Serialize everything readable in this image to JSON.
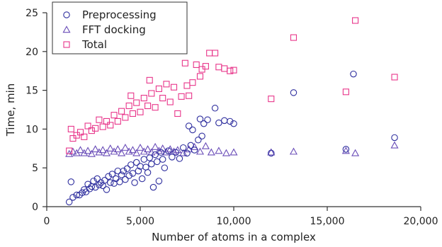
{
  "chart_data": {
    "type": "scatter",
    "title": "",
    "xlabel": "Number of atoms in a complex",
    "ylabel": "Time, min",
    "xlim": [
      0,
      20000
    ],
    "ylim": [
      0,
      25
    ],
    "x_ticks": [
      0,
      5000,
      10000,
      15000,
      20000
    ],
    "x_tick_labels": [
      "0",
      "5,000",
      "10,000",
      "15,000",
      "20,000"
    ],
    "y_ticks": [
      0,
      5,
      10,
      15,
      20,
      25
    ],
    "y_tick_labels": [
      "0",
      "5",
      "10",
      "15",
      "20",
      "25"
    ],
    "grid": false,
    "legend_position": "top-left",
    "series": [
      {
        "name": "Preprocessing",
        "marker": "circle",
        "color": "#2e2e9e",
        "points": [
          [
            1200,
            0.6
          ],
          [
            1300,
            3.2
          ],
          [
            1400,
            1.2
          ],
          [
            1600,
            1.5
          ],
          [
            1750,
            1.5
          ],
          [
            1900,
            1.8
          ],
          [
            2000,
            2.2
          ],
          [
            2100,
            1.9
          ],
          [
            2200,
            2.9
          ],
          [
            2300,
            2.3
          ],
          [
            2400,
            2.6
          ],
          [
            2500,
            3.3
          ],
          [
            2600,
            2.5
          ],
          [
            2700,
            3.6
          ],
          [
            2800,
            2.8
          ],
          [
            2900,
            3.1
          ],
          [
            3000,
            2.7
          ],
          [
            3100,
            3.4
          ],
          [
            3200,
            2.2
          ],
          [
            3300,
            3.9
          ],
          [
            3400,
            3.1
          ],
          [
            3500,
            4.2
          ],
          [
            3600,
            3.0
          ],
          [
            3700,
            3.6
          ],
          [
            3800,
            4.6
          ],
          [
            3900,
            3.2
          ],
          [
            4000,
            4.1
          ],
          [
            4100,
            4.6
          ],
          [
            4200,
            3.5
          ],
          [
            4300,
            4.9
          ],
          [
            4400,
            4.0
          ],
          [
            4500,
            5.4
          ],
          [
            4600,
            4.3
          ],
          [
            4700,
            3.1
          ],
          [
            4800,
            5.7
          ],
          [
            4900,
            4.6
          ],
          [
            5000,
            5.2
          ],
          [
            5100,
            3.6
          ],
          [
            5200,
            6.1
          ],
          [
            5300,
            5.1
          ],
          [
            5400,
            4.4
          ],
          [
            5500,
            6.3
          ],
          [
            5600,
            5.5
          ],
          [
            5700,
            2.5
          ],
          [
            5800,
            6.7
          ],
          [
            5900,
            5.8
          ],
          [
            6000,
            3.3
          ],
          [
            6100,
            7.0
          ],
          [
            6200,
            6.1
          ],
          [
            6300,
            5.0
          ],
          [
            6500,
            7.2
          ],
          [
            6700,
            6.4
          ],
          [
            6900,
            7.0
          ],
          [
            7100,
            6.2
          ],
          [
            7300,
            7.6
          ],
          [
            7500,
            6.9
          ],
          [
            7600,
            10.4
          ],
          [
            7700,
            7.9
          ],
          [
            7800,
            9.9
          ],
          [
            7900,
            7.3
          ],
          [
            8100,
            8.6
          ],
          [
            8200,
            11.3
          ],
          [
            8300,
            9.1
          ],
          [
            8400,
            10.7
          ],
          [
            8600,
            11.2
          ],
          [
            9000,
            12.7
          ],
          [
            9200,
            10.8
          ],
          [
            9500,
            11.1
          ],
          [
            9800,
            11.0
          ],
          [
            10000,
            10.7
          ],
          [
            12000,
            6.9
          ],
          [
            13200,
            14.7
          ],
          [
            16000,
            7.4
          ],
          [
            16400,
            17.1
          ],
          [
            18600,
            8.9
          ]
        ]
      },
      {
        "name": "FFT docking",
        "marker": "triangle",
        "color": "#6a4db8",
        "points": [
          [
            1200,
            6.8
          ],
          [
            1400,
            7.1
          ],
          [
            1600,
            6.9
          ],
          [
            1800,
            7.3
          ],
          [
            2000,
            6.9
          ],
          [
            2200,
            7.2
          ],
          [
            2400,
            6.8
          ],
          [
            2600,
            7.4
          ],
          [
            2800,
            7.0
          ],
          [
            3000,
            7.3
          ],
          [
            3200,
            6.9
          ],
          [
            3400,
            7.5
          ],
          [
            3600,
            7.1
          ],
          [
            3800,
            7.4
          ],
          [
            4000,
            6.9
          ],
          [
            4200,
            7.6
          ],
          [
            4400,
            7.1
          ],
          [
            4600,
            7.3
          ],
          [
            4800,
            6.9
          ],
          [
            5000,
            7.6
          ],
          [
            5200,
            7.1
          ],
          [
            5400,
            7.4
          ],
          [
            5600,
            7.0
          ],
          [
            5800,
            7.7
          ],
          [
            6000,
            7.2
          ],
          [
            6200,
            7.5
          ],
          [
            6400,
            7.0
          ],
          [
            6600,
            7.4
          ],
          [
            6800,
            7.1
          ],
          [
            7000,
            7.3
          ],
          [
            7300,
            6.9
          ],
          [
            7600,
            7.4
          ],
          [
            7900,
            7.7
          ],
          [
            8200,
            7.1
          ],
          [
            8500,
            7.8
          ],
          [
            8800,
            7.0
          ],
          [
            9200,
            7.2
          ],
          [
            9600,
            6.9
          ],
          [
            10000,
            7.0
          ],
          [
            12000,
            7.0
          ],
          [
            13200,
            7.1
          ],
          [
            16000,
            7.2
          ],
          [
            16500,
            6.9
          ],
          [
            18600,
            7.9
          ]
        ]
      },
      {
        "name": "Total",
        "marker": "square",
        "color": "#e8358a",
        "points": [
          [
            1200,
            7.2
          ],
          [
            1300,
            10.0
          ],
          [
            1400,
            8.8
          ],
          [
            1600,
            9.2
          ],
          [
            1800,
            9.6
          ],
          [
            2000,
            9.0
          ],
          [
            2200,
            10.4
          ],
          [
            2400,
            9.8
          ],
          [
            2600,
            10.1
          ],
          [
            2800,
            11.2
          ],
          [
            3000,
            10.3
          ],
          [
            3200,
            11.0
          ],
          [
            3400,
            10.5
          ],
          [
            3600,
            11.8
          ],
          [
            3800,
            11.0
          ],
          [
            4000,
            12.3
          ],
          [
            4200,
            11.5
          ],
          [
            4400,
            13.0
          ],
          [
            4500,
            14.3
          ],
          [
            4600,
            12.0
          ],
          [
            4800,
            13.4
          ],
          [
            5000,
            12.2
          ],
          [
            5200,
            14.0
          ],
          [
            5400,
            13.0
          ],
          [
            5500,
            16.3
          ],
          [
            5600,
            14.6
          ],
          [
            5800,
            12.8
          ],
          [
            6000,
            15.2
          ],
          [
            6200,
            14.0
          ],
          [
            6400,
            15.8
          ],
          [
            6600,
            13.5
          ],
          [
            6800,
            15.4
          ],
          [
            7000,
            12.0
          ],
          [
            7200,
            14.2
          ],
          [
            7400,
            18.5
          ],
          [
            7500,
            15.6
          ],
          [
            7600,
            14.3
          ],
          [
            7800,
            16.0
          ],
          [
            8000,
            18.3
          ],
          [
            8200,
            16.8
          ],
          [
            8300,
            17.7
          ],
          [
            8500,
            18.1
          ],
          [
            8700,
            19.8
          ],
          [
            9000,
            19.8
          ],
          [
            9200,
            18.0
          ],
          [
            9500,
            17.8
          ],
          [
            9800,
            17.5
          ],
          [
            10000,
            17.6
          ],
          [
            12000,
            13.9
          ],
          [
            13200,
            21.8
          ],
          [
            16000,
            14.8
          ],
          [
            16500,
            24.0
          ],
          [
            18600,
            16.7
          ]
        ]
      }
    ]
  }
}
